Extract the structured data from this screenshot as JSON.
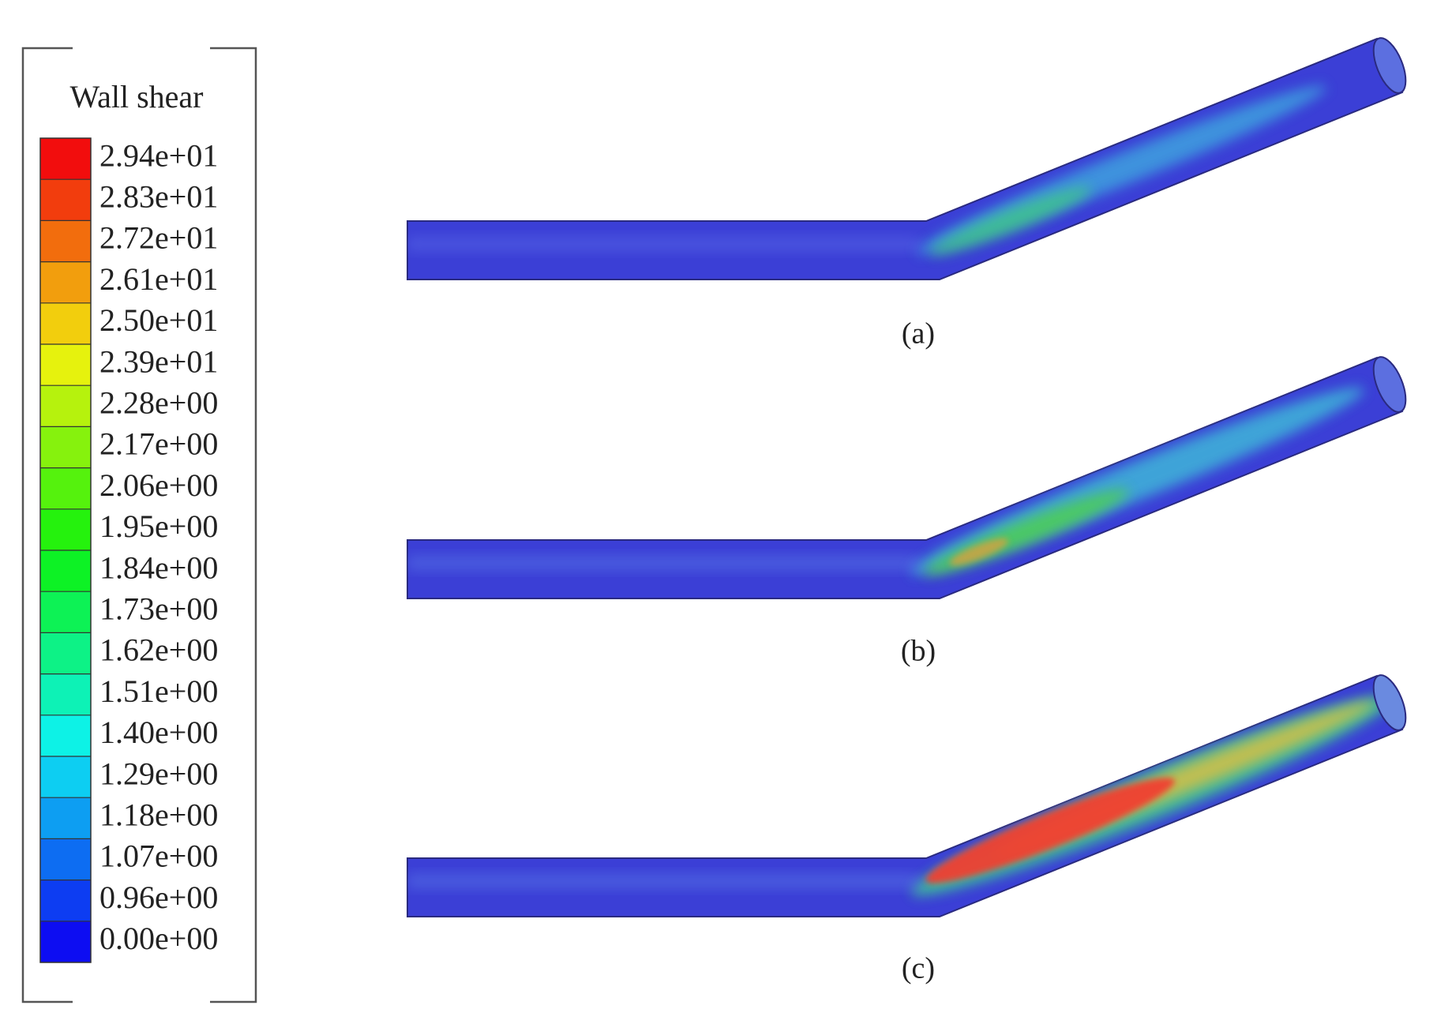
{
  "legend": {
    "title": "Wall shear",
    "labels": [
      "2.94e+01",
      "2.83e+01",
      "2.72e+01",
      "2.61e+01",
      "2.50e+01",
      "2.39e+01",
      "2.28e+00",
      "2.17e+00",
      "2.06e+00",
      "1.95e+00",
      "1.84e+00",
      "1.73e+00",
      "1.62e+00",
      "1.51e+00",
      "1.40e+00",
      "1.29e+00",
      "1.18e+00",
      "1.07e+00",
      "0.96e+00",
      "0.00e+00"
    ]
  },
  "panels": [
    {
      "label": "(a)"
    },
    {
      "label": "(b)"
    },
    {
      "label": "(c)"
    }
  ]
}
